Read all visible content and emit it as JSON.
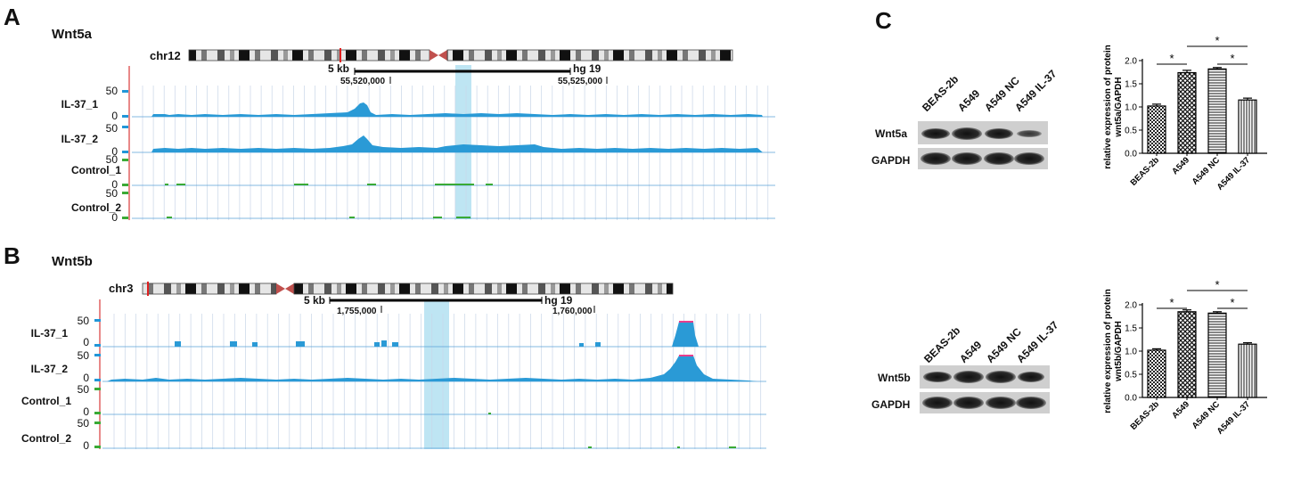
{
  "panels": {
    "A": {
      "letter": "A",
      "gene": "Wnt5a",
      "chromosome": "chr12",
      "scale": "5 kb",
      "assembly": "hg 19",
      "coord_left": "55,520,000",
      "coord_right": "55,525,000",
      "tracks": [
        {
          "label": "IL-37_1",
          "ymax": "50",
          "ymin": "0"
        },
        {
          "label": "IL-37_2",
          "ymax": "50",
          "ymin": "0"
        },
        {
          "label": "Control_1",
          "ymax": "50",
          "ymin": "0"
        },
        {
          "label": "Control_2",
          "ymax": "50",
          "ymin": "0"
        }
      ]
    },
    "B": {
      "letter": "B",
      "gene": "Wnt5b",
      "chromosome": "chr3",
      "scale": "5 kb",
      "assembly": "hg 19",
      "coord_left": "1,755,000",
      "coord_right": "1,760,000",
      "tracks": [
        {
          "label": "IL-37_1",
          "ymax": "50",
          "ymin": "0"
        },
        {
          "label": "IL-37_2",
          "ymax": "50",
          "ymin": "0"
        },
        {
          "label": "Control_1",
          "ymax": "50",
          "ymin": "0"
        },
        {
          "label": "Control_2",
          "ymax": "50",
          "ymin": "0"
        }
      ]
    },
    "C": {
      "letter": "C",
      "lanes": [
        "BEAS-2b",
        "A549",
        "A549 NC",
        "A549 IL-37"
      ],
      "blots_top": {
        "target": "Wnt5a",
        "loading": "GAPDH"
      },
      "blots_bottom": {
        "target": "Wnt5b",
        "loading": "GAPDH"
      }
    }
  },
  "chart_data": [
    {
      "type": "bar",
      "categories": [
        "BEAS-2b",
        "A549",
        "A549 NC",
        "A549 IL-37"
      ],
      "values": [
        1.02,
        1.74,
        1.82,
        1.15
      ],
      "errors": [
        0.04,
        0.05,
        0.03,
        0.04
      ],
      "ylabel": "relative expression of protein wnt5a/GAPDH",
      "ylim": [
        0,
        2.0
      ],
      "yticks": [
        "0.0",
        "0.5",
        "1.0",
        "1.5",
        "2.0"
      ],
      "significance": [
        "*",
        "*",
        "*"
      ]
    },
    {
      "type": "bar",
      "categories": [
        "BEAS-2b",
        "A549",
        "A549 NC",
        "A549 IL-37"
      ],
      "values": [
        1.02,
        1.85,
        1.82,
        1.15
      ],
      "errors": [
        0.03,
        0.04,
        0.03,
        0.03
      ],
      "ylabel": "relative expression of protein wnt5b/GAPDH",
      "ylim": [
        0,
        2.0
      ],
      "yticks": [
        "0.0",
        "0.5",
        "1.0",
        "1.5",
        "2.0"
      ],
      "significance": [
        "*",
        "*",
        "*"
      ]
    }
  ]
}
